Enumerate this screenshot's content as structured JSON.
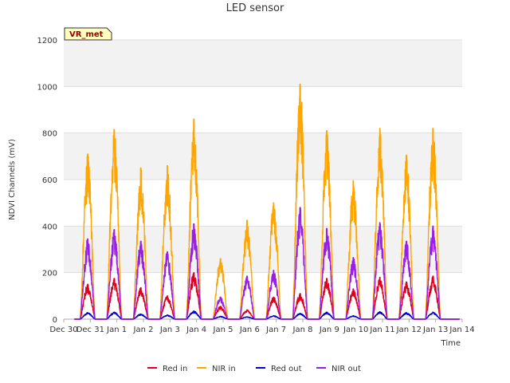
{
  "chart_data": {
    "type": "line",
    "title": "LED sensor",
    "xlabel": "Time",
    "ylabel": "NDVI Channels (mV)",
    "ylim": [
      0,
      1200
    ],
    "yticks": [
      0,
      200,
      400,
      600,
      800,
      1000,
      1200
    ],
    "xlim": [
      0,
      15
    ],
    "xticks": [
      {
        "x": 0,
        "label": "Dec 30"
      },
      {
        "x": 1,
        "label": "Dec 31"
      },
      {
        "x": 2,
        "label": "Jan 1"
      },
      {
        "x": 3,
        "label": "Jan 2"
      },
      {
        "x": 4,
        "label": "Jan 3"
      },
      {
        "x": 5,
        "label": "Jan 4"
      },
      {
        "x": 6,
        "label": "Jan 5"
      },
      {
        "x": 7,
        "label": "Jan 6"
      },
      {
        "x": 8,
        "label": "Jan 7"
      },
      {
        "x": 9,
        "label": "Jan 8"
      },
      {
        "x": 10,
        "label": "Jan 9"
      },
      {
        "x": 11,
        "label": "Jan 10"
      },
      {
        "x": 12,
        "label": "Jan 11"
      },
      {
        "x": 13,
        "label": "Jan 12"
      },
      {
        "x": 14,
        "label": "Jan 13"
      },
      {
        "x": 15,
        "label": "Jan 14"
      }
    ],
    "grid": true,
    "legend_position": "bottom",
    "annotation": {
      "label": "VR_met"
    },
    "days": [
      {
        "day": 0.9,
        "peaks": {
          "red_in": 150,
          "nir_in": 710,
          "red_out": 28,
          "nir_out": 345
        }
      },
      {
        "day": 1.9,
        "peaks": {
          "red_in": 175,
          "nir_in": 815,
          "red_out": 30,
          "nir_out": 385
        }
      },
      {
        "day": 2.9,
        "peaks": {
          "red_in": 135,
          "nir_in": 650,
          "red_out": 22,
          "nir_out": 335
        }
      },
      {
        "day": 3.9,
        "peaks": {
          "red_in": 100,
          "nir_in": 660,
          "red_out": 18,
          "nir_out": 290
        }
      },
      {
        "day": 4.9,
        "peaks": {
          "red_in": 200,
          "nir_in": 860,
          "red_out": 35,
          "nir_out": 410
        }
      },
      {
        "day": 5.9,
        "peaks": {
          "red_in": 55,
          "nir_in": 260,
          "red_out": 12,
          "nir_out": 95
        }
      },
      {
        "day": 6.9,
        "peaks": {
          "red_in": 40,
          "nir_in": 425,
          "red_out": 10,
          "nir_out": 185
        }
      },
      {
        "day": 7.9,
        "peaks": {
          "red_in": 95,
          "nir_in": 500,
          "red_out": 15,
          "nir_out": 210
        }
      },
      {
        "day": 8.9,
        "peaks": {
          "red_in": 110,
          "nir_in": 1010,
          "red_out": 25,
          "nir_out": 480
        }
      },
      {
        "day": 9.9,
        "peaks": {
          "red_in": 175,
          "nir_in": 810,
          "red_out": 30,
          "nir_out": 390
        }
      },
      {
        "day": 10.9,
        "peaks": {
          "red_in": 130,
          "nir_in": 595,
          "red_out": 15,
          "nir_out": 265
        }
      },
      {
        "day": 11.9,
        "peaks": {
          "red_in": 180,
          "nir_in": 820,
          "red_out": 32,
          "nir_out": 415
        }
      },
      {
        "day": 12.9,
        "peaks": {
          "red_in": 160,
          "nir_in": 705,
          "red_out": 28,
          "nir_out": 335
        }
      },
      {
        "day": 13.9,
        "peaks": {
          "red_in": 185,
          "nir_in": 820,
          "red_out": 30,
          "nir_out": 400
        }
      }
    ],
    "series": [
      {
        "key": "red_in",
        "name": "Red in",
        "color": "#e0001b"
      },
      {
        "key": "nir_in",
        "name": "NIR in",
        "color": "#ffa500"
      },
      {
        "key": "red_out",
        "name": "Red out",
        "color": "#0000cc"
      },
      {
        "key": "nir_out",
        "name": "NIR out",
        "color": "#9a1fe6"
      }
    ]
  }
}
